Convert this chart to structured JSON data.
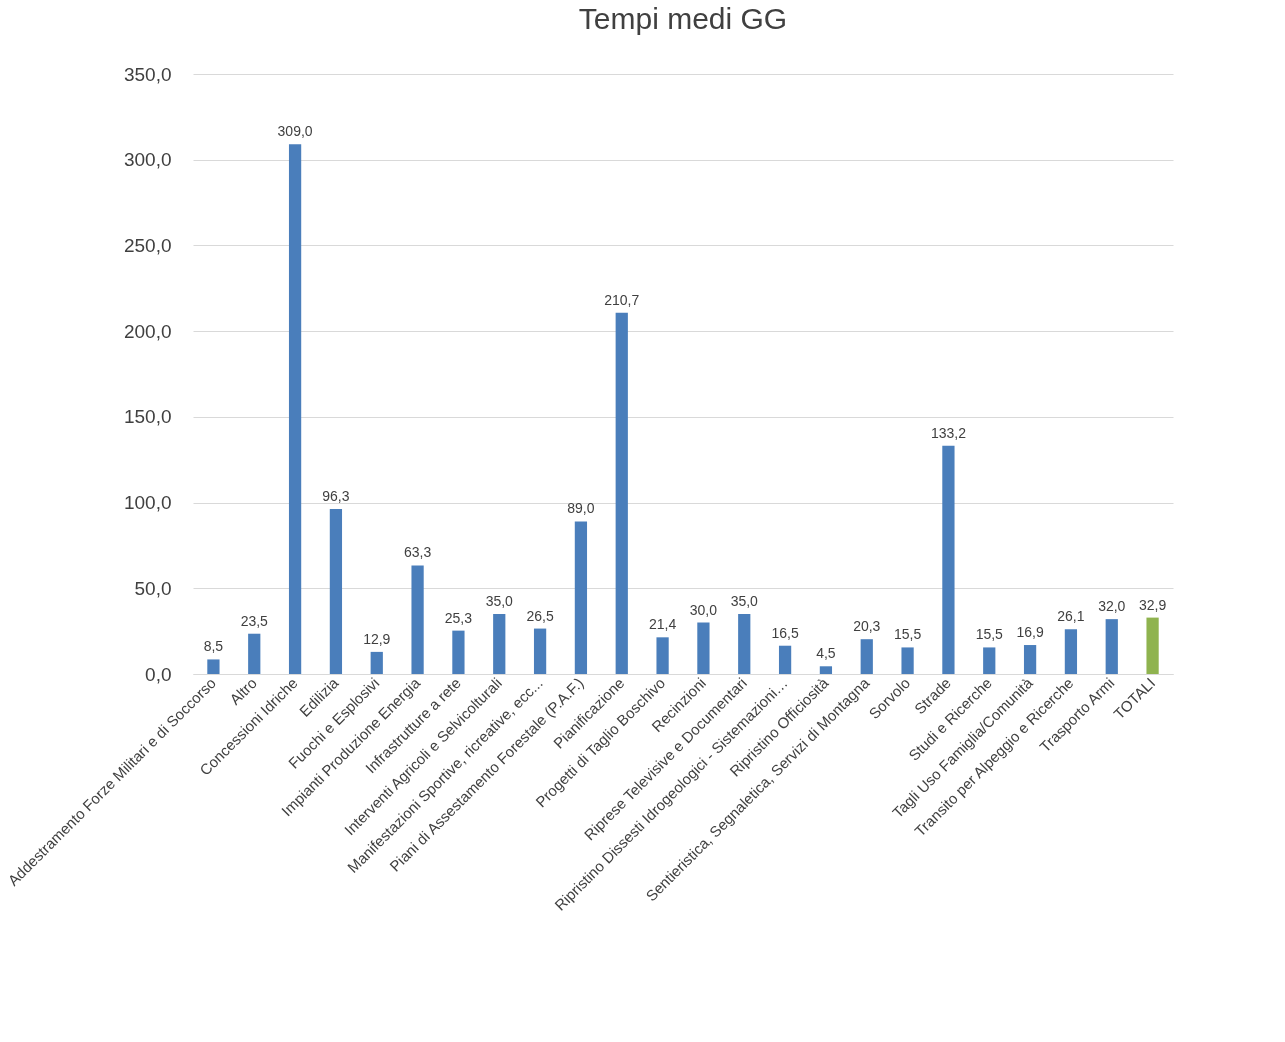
{
  "chart_data": {
    "type": "bar",
    "title": "Tempi medi GG",
    "categories": [
      "Addestramento Forze Militari e di Soccorso",
      "Altro",
      "Concessioni Idriche",
      "Edilizia",
      "Fuochi e Esplosivi",
      "Impianti Produzione Energia",
      "Infrastrutture a rete",
      "Interventi Agricoli e Selvicolturali",
      "Manifestazioni Sportive, ricreative, ecc...",
      "Piani di Assestamento Forestale (P.A.F.)",
      "Pianificazione",
      "Progetti di Taglio Boschivo",
      "Recinzioni",
      "Riprese Televisive e Documentari",
      "Ripristino Dissesti Idrogeologici - Sistemazioni…",
      "Ripristino Officiosità",
      "Sentieristica, Segnaletica, Servizi di Montagna",
      "Sorvolo",
      "Strade",
      "Studi e Ricerche",
      "Tagli Uso Famiglia/Comunità",
      "Transito per Alpeggio  e Ricerche",
      "Trasporto Armi",
      "TOTALI"
    ],
    "values": [
      8.5,
      23.5,
      309.0,
      96.3,
      12.9,
      63.3,
      25.3,
      35.0,
      26.5,
      89.0,
      210.7,
      21.4,
      30.0,
      35.0,
      16.5,
      4.5,
      20.3,
      15.5,
      133.2,
      15.5,
      16.9,
      26.1,
      32.0,
      32.9
    ],
    "value_labels": [
      "8,5",
      "23,5",
      "309,0",
      "96,3",
      "12,9",
      "63,3",
      "25,3",
      "35,0",
      "26,5",
      "89,0",
      "210,7",
      "21,4",
      "30,0",
      "35,0",
      "16,5",
      "4,5",
      "20,3",
      "15,5",
      "133,2",
      "15,5",
      "16,9",
      "26,1",
      "32,0",
      "32,9"
    ],
    "colors": [
      "#4a7ebb",
      "#4a7ebb",
      "#4a7ebb",
      "#4a7ebb",
      "#4a7ebb",
      "#4a7ebb",
      "#4a7ebb",
      "#4a7ebb",
      "#4a7ebb",
      "#4a7ebb",
      "#4a7ebb",
      "#4a7ebb",
      "#4a7ebb",
      "#4a7ebb",
      "#4a7ebb",
      "#4a7ebb",
      "#4a7ebb",
      "#4a7ebb",
      "#4a7ebb",
      "#4a7ebb",
      "#4a7ebb",
      "#4a7ebb",
      "#4a7ebb",
      "#8fb34f"
    ],
    "ylim": [
      0,
      350
    ],
    "yticks": [
      {
        "value": 0,
        "label": "0,0"
      },
      {
        "value": 50,
        "label": "50,0"
      },
      {
        "value": 100,
        "label": "100,0"
      },
      {
        "value": 150,
        "label": "150,0"
      },
      {
        "value": 200,
        "label": "200,0"
      },
      {
        "value": 250,
        "label": "250,0"
      },
      {
        "value": 300,
        "label": "300,0"
      },
      {
        "value": 350,
        "label": "350,0"
      }
    ],
    "grid": "y"
  }
}
